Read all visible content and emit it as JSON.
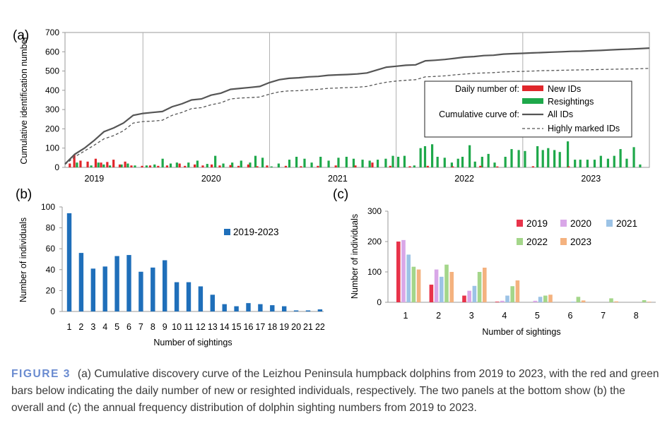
{
  "colors": {
    "new": "#e0262b",
    "resight": "#1ea84a",
    "blue": "#1f6fba",
    "curve_all": "#555555",
    "curve_marked": "#555555",
    "grid": "#b0b0b0",
    "y2019": "#e8334a",
    "y2020": "#d9a7e8",
    "y2021": "#9cc3e6",
    "y2022": "#a4d68a",
    "y2023": "#f4b27f"
  },
  "chart_data": [
    {
      "id": "a",
      "panel_label": "(a)",
      "type": "line",
      "ylabel": "Cumulative identification number",
      "ylim": [
        0,
        700
      ],
      "yticks": [
        "0",
        "100",
        "200",
        "300",
        "400",
        "500",
        "600",
        "700"
      ],
      "xlim": [
        0,
        60
      ],
      "year_labels": [
        "2019",
        "2020",
        "2021",
        "2022",
        "2023"
      ],
      "year_label_pos": [
        3,
        15,
        28,
        41,
        54
      ],
      "year_boundaries": [
        8,
        21,
        34,
        47
      ],
      "series": [
        {
          "name": "All IDs",
          "style": "solid",
          "points": [
            [
              0,
              18
            ],
            [
              1,
              68
            ],
            [
              2,
              100
            ],
            [
              3,
              140
            ],
            [
              4,
              185
            ],
            [
              5,
              205
            ],
            [
              6,
              230
            ],
            [
              7,
              270
            ],
            [
              8,
              280
            ],
            [
              9,
              285
            ],
            [
              10,
              290
            ],
            [
              11,
              315
            ],
            [
              12,
              330
            ],
            [
              13,
              350
            ],
            [
              14,
              355
            ],
            [
              15,
              375
            ],
            [
              16,
              385
            ],
            [
              17,
              405
            ],
            [
              18,
              410
            ],
            [
              19,
              415
            ],
            [
              20,
              420
            ],
            [
              21,
              440
            ],
            [
              22,
              455
            ],
            [
              23,
              462
            ],
            [
              24,
              465
            ],
            [
              25,
              470
            ],
            [
              26,
              472
            ],
            [
              27,
              478
            ],
            [
              28,
              480
            ],
            [
              29,
              482
            ],
            [
              30,
              485
            ],
            [
              31,
              490
            ],
            [
              32,
              505
            ],
            [
              33,
              520
            ],
            [
              34,
              525
            ],
            [
              35,
              530
            ],
            [
              36,
              532
            ],
            [
              37,
              553
            ],
            [
              38,
              556
            ],
            [
              39,
              560
            ],
            [
              40,
              566
            ],
            [
              41,
              572
            ],
            [
              42,
              575
            ],
            [
              43,
              580
            ],
            [
              44,
              582
            ],
            [
              45,
              588
            ],
            [
              46,
              590
            ],
            [
              47,
              592
            ],
            [
              48,
              594
            ],
            [
              49,
              596
            ],
            [
              50,
              598
            ],
            [
              51,
              600
            ],
            [
              52,
              602
            ],
            [
              53,
              603
            ],
            [
              54,
              605
            ],
            [
              55,
              607
            ],
            [
              56,
              610
            ],
            [
              57,
              612
            ],
            [
              58,
              614
            ],
            [
              59,
              616
            ],
            [
              60,
              619
            ]
          ]
        },
        {
          "name": "Highly marked IDs",
          "style": "dashed",
          "points": [
            [
              0,
              15
            ],
            [
              1,
              55
            ],
            [
              2,
              85
            ],
            [
              3,
              115
            ],
            [
              4,
              148
            ],
            [
              5,
              165
            ],
            [
              6,
              190
            ],
            [
              7,
              230
            ],
            [
              8,
              238
            ],
            [
              9,
              240
            ],
            [
              10,
              245
            ],
            [
              11,
              270
            ],
            [
              12,
              285
            ],
            [
              13,
              305
            ],
            [
              14,
              310
            ],
            [
              15,
              325
            ],
            [
              16,
              335
            ],
            [
              17,
              355
            ],
            [
              18,
              360
            ],
            [
              19,
              362
            ],
            [
              20,
              365
            ],
            [
              21,
              380
            ],
            [
              22,
              392
            ],
            [
              23,
              397
            ],
            [
              24,
              398
            ],
            [
              25,
              402
            ],
            [
              26,
              405
            ],
            [
              27,
              410
            ],
            [
              28,
              412
            ],
            [
              29,
              414
            ],
            [
              30,
              416
            ],
            [
              31,
              420
            ],
            [
              32,
              432
            ],
            [
              33,
              442
            ],
            [
              34,
              448
            ],
            [
              35,
              452
            ],
            [
              36,
              455
            ],
            [
              37,
              470
            ],
            [
              38,
              472
            ],
            [
              39,
              475
            ],
            [
              40,
              480
            ],
            [
              41,
              484
            ],
            [
              42,
              488
            ],
            [
              43,
              490
            ],
            [
              44,
              492
            ],
            [
              45,
              495
            ],
            [
              46,
              497
            ],
            [
              47,
              498
            ],
            [
              48,
              500
            ],
            [
              49,
              502
            ],
            [
              50,
              503
            ],
            [
              51,
              504
            ],
            [
              52,
              505
            ],
            [
              53,
              506
            ],
            [
              54,
              507
            ],
            [
              55,
              508
            ],
            [
              56,
              509
            ],
            [
              57,
              510
            ],
            [
              58,
              511
            ],
            [
              59,
              512
            ],
            [
              60,
              514
            ]
          ]
        }
      ],
      "bars": {
        "new_ids": [
          [
            0.3,
            20
          ],
          [
            0.8,
            65
          ],
          [
            1.5,
            35
          ],
          [
            2.3,
            30
          ],
          [
            3.2,
            45
          ],
          [
            3.8,
            25
          ],
          [
            4.5,
            28
          ],
          [
            5.2,
            40
          ],
          [
            5.9,
            15
          ],
          [
            6.5,
            30
          ],
          [
            7.2,
            10
          ],
          [
            8.4,
            8
          ],
          [
            9.3,
            10
          ],
          [
            10.2,
            8
          ],
          [
            11.2,
            10
          ],
          [
            12.6,
            20
          ],
          [
            13.2,
            8
          ],
          [
            14.3,
            15
          ],
          [
            15.2,
            10
          ],
          [
            16.2,
            15
          ],
          [
            17.1,
            10
          ],
          [
            18.3,
            12
          ],
          [
            19.2,
            8
          ],
          [
            20.3,
            15
          ],
          [
            21.3,
            6
          ],
          [
            22.4,
            10
          ],
          [
            24.5,
            8
          ],
          [
            26.2,
            6
          ],
          [
            28.1,
            8
          ],
          [
            30.1,
            10
          ],
          [
            32.3,
            10
          ],
          [
            34.2,
            25
          ],
          [
            36.2,
            8
          ],
          [
            38.4,
            6
          ],
          [
            40.4,
            8
          ],
          [
            43.2,
            5
          ],
          [
            46.3,
            8
          ],
          [
            48.2,
            5
          ],
          [
            52.2,
            6
          ],
          [
            56.2,
            5
          ]
        ],
        "resightings": [
          [
            1.1,
            25
          ],
          [
            2.7,
            10
          ],
          [
            3.5,
            25
          ],
          [
            4.1,
            15
          ],
          [
            4.8,
            10
          ],
          [
            6.1,
            15
          ],
          [
            6.8,
            20
          ],
          [
            7.6,
            10
          ],
          [
            8.9,
            10
          ],
          [
            9.8,
            15
          ],
          [
            10.7,
            45
          ],
          [
            11.6,
            20
          ],
          [
            12.3,
            25
          ],
          [
            13.6,
            25
          ],
          [
            14.6,
            35
          ],
          [
            15.7,
            18
          ],
          [
            16.6,
            60
          ],
          [
            17.5,
            20
          ],
          [
            18.5,
            25
          ],
          [
            19.5,
            35
          ],
          [
            20.5,
            25
          ],
          [
            21.1,
            60
          ],
          [
            21.9,
            50
          ],
          [
            22.9,
            5
          ],
          [
            23.7,
            20
          ],
          [
            24.9,
            40
          ],
          [
            25.7,
            55
          ],
          [
            26.6,
            45
          ],
          [
            27.4,
            25
          ],
          [
            28.4,
            55
          ],
          [
            29.3,
            35
          ],
          [
            30.4,
            50
          ],
          [
            31.3,
            55
          ],
          [
            32.1,
            45
          ],
          [
            33.1,
            40
          ],
          [
            33.9,
            35
          ],
          [
            34.8,
            40
          ],
          [
            35.7,
            45
          ],
          [
            36.5,
            60
          ],
          [
            37.1,
            55
          ],
          [
            37.8,
            60
          ],
          [
            38.9,
            10
          ],
          [
            39.6,
            100
          ],
          [
            40.1,
            110
          ],
          [
            40.9,
            120
          ],
          [
            41.5,
            55
          ],
          [
            42.3,
            50
          ],
          [
            43.1,
            25
          ],
          [
            43.8,
            45
          ],
          [
            44.3,
            55
          ],
          [
            45.1,
            115
          ],
          [
            45.7,
            30
          ],
          [
            46.5,
            55
          ],
          [
            47.2,
            70
          ],
          [
            47.9,
            25
          ],
          [
            49.1,
            55
          ],
          [
            49.8,
            95
          ],
          [
            50.6,
            90
          ],
          [
            51.3,
            85
          ],
          [
            52.7,
            110
          ],
          [
            53.3,
            90
          ],
          [
            53.9,
            100
          ],
          [
            54.6,
            90
          ],
          [
            55.2,
            80
          ],
          [
            56.1,
            135
          ],
          [
            56.9,
            40
          ],
          [
            57.5,
            40
          ],
          [
            58.3,
            40
          ],
          [
            59.1,
            40
          ],
          [
            59.8,
            60
          ],
          [
            60.6,
            45
          ],
          [
            61.3,
            60
          ],
          [
            62.0,
            95
          ],
          [
            62.7,
            45
          ],
          [
            63.5,
            105
          ],
          [
            64.2,
            15
          ]
        ]
      },
      "legend": {
        "daily_heading": "Daily number of:",
        "new_label": "New IDs",
        "resight_label": "Resightings",
        "cum_heading": "Cumulative curve of:",
        "all_label": "All IDs",
        "marked_label": "Highly marked IDs"
      }
    },
    {
      "id": "b",
      "panel_label": "(b)",
      "type": "bar",
      "ylabel": "Number of individuals",
      "xlabel": "Number of sightings",
      "ylim": [
        0,
        100
      ],
      "yticks": [
        "0",
        "20",
        "40",
        "60",
        "80",
        "100"
      ],
      "categories": [
        "1",
        "2",
        "3",
        "4",
        "5",
        "6",
        "7",
        "8",
        "9",
        "10",
        "11",
        "12",
        "13",
        "14",
        "15",
        "16",
        "17",
        "18",
        "19",
        "20",
        "21",
        "22"
      ],
      "series": [
        {
          "name": "2019-2023",
          "values": [
            94,
            56,
            41,
            43,
            53,
            54,
            38,
            42,
            49,
            28,
            28,
            24,
            16,
            7,
            5,
            8,
            7,
            6,
            5,
            1,
            1,
            2
          ]
        }
      ],
      "legend_label": "2019-2023"
    },
    {
      "id": "c",
      "panel_label": "(c)",
      "type": "bar",
      "ylabel": "Number of individuals",
      "xlabel": "Number of sightings",
      "ylim": [
        0,
        300
      ],
      "yticks": [
        "0",
        "100",
        "200",
        "300"
      ],
      "categories": [
        "1",
        "2",
        "3",
        "4",
        "5",
        "6",
        "7",
        "8"
      ],
      "series": [
        {
          "name": "2019",
          "values": [
            200,
            58,
            22,
            2,
            0,
            0,
            0,
            0
          ]
        },
        {
          "name": "2020",
          "values": [
            205,
            108,
            38,
            5,
            5,
            0,
            0,
            0
          ]
        },
        {
          "name": "2021",
          "values": [
            157,
            84,
            54,
            22,
            18,
            2,
            0,
            0
          ]
        },
        {
          "name": "2022",
          "values": [
            117,
            124,
            100,
            53,
            22,
            18,
            13,
            7
          ]
        },
        {
          "name": "2023",
          "values": [
            108,
            100,
            114,
            72,
            25,
            6,
            3,
            2
          ]
        }
      ]
    }
  ],
  "caption": {
    "lead": "FIGURE 3",
    "text": "(a) Cumulative discovery curve of the Leizhou Peninsula humpback dolphins from 2019 to 2023, with the red and green bars below indicating the daily number of new or resighted individuals, respectively. The two panels at the bottom show (b) the overall and (c) the annual frequency distribution of dolphin sighting numbers from 2019 to 2023."
  }
}
